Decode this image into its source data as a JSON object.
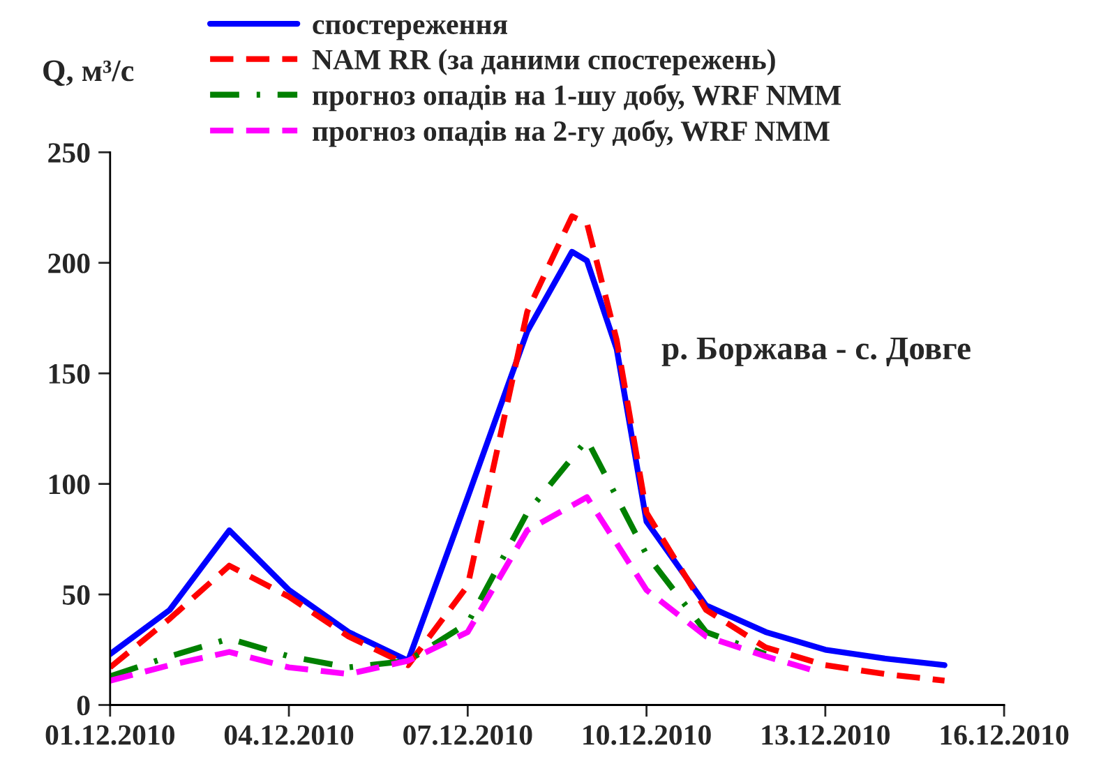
{
  "chart_data": {
    "type": "line",
    "ylabel": "Q, м³/с",
    "xlim": [
      "2010-12-01",
      "2010-12-16"
    ],
    "xticks": [
      {
        "value": "2010-12-01",
        "label": "01.12.2010"
      },
      {
        "value": "2010-12-04",
        "label": "04.12.2010"
      },
      {
        "value": "2010-12-07",
        "label": "07.12.2010"
      },
      {
        "value": "2010-12-10",
        "label": "10.12.2010"
      },
      {
        "value": "2010-12-13",
        "label": "13.12.2010"
      },
      {
        "value": "2010-12-16",
        "label": "16.12.2010"
      }
    ],
    "ylim": [
      0,
      250
    ],
    "yticks": [
      0,
      50,
      100,
      150,
      200,
      250
    ],
    "grid": false,
    "legend": "top",
    "annotations": [
      "р. Боржава - с. Довге"
    ],
    "series": [
      {
        "name": "спостереження",
        "color": "#0000ff",
        "line_style": "solid",
        "x": [
          "2010-12-01",
          "2010-12-02",
          "2010-12-03",
          "2010-12-04",
          "2010-12-05",
          "2010-12-06",
          "2010-12-07",
          "2010-12-08",
          "2010-12-08T18:00",
          "2010-12-09",
          "2010-12-09T12:00",
          "2010-12-10",
          "2010-12-11",
          "2010-12-12",
          "2010-12-13",
          "2010-12-14",
          "2010-12-15"
        ],
        "values": [
          23,
          43,
          79,
          52,
          33,
          20,
          94,
          169,
          205,
          201,
          161,
          83,
          45,
          33,
          25,
          21,
          18
        ]
      },
      {
        "name": "NAM RR (за даними спостережень)",
        "color": "#ff0000",
        "line_style": "dashed",
        "x": [
          "2010-12-01",
          "2010-12-02",
          "2010-12-03",
          "2010-12-04",
          "2010-12-05",
          "2010-12-06",
          "2010-12-07",
          "2010-12-08",
          "2010-12-08T18:00",
          "2010-12-09",
          "2010-12-09T12:00",
          "2010-12-10",
          "2010-12-11",
          "2010-12-12",
          "2010-12-13",
          "2010-12-14",
          "2010-12-15"
        ],
        "values": [
          17,
          39,
          63,
          49,
          31,
          18,
          54,
          178,
          221,
          218,
          165,
          87,
          43,
          26,
          18,
          14,
          11
        ]
      },
      {
        "name": "прогноз опадів на 1-шу добу, WRF NMM",
        "color": "#008000",
        "line_style": "dashdot",
        "x": [
          "2010-12-01",
          "2010-12-02",
          "2010-12-03",
          "2010-12-04",
          "2010-12-05",
          "2010-12-06",
          "2010-12-07",
          "2010-12-08",
          "2010-12-09",
          "2010-12-10",
          "2010-12-11",
          "2010-12-12"
        ],
        "values": [
          13,
          22,
          30,
          22,
          17,
          20,
          37,
          87,
          120,
          68,
          33,
          23
        ]
      },
      {
        "name": "прогноз опадів на 2-гу добу, WRF NMM",
        "color": "#ff00ff",
        "line_style": "dashed",
        "x": [
          "2010-12-01",
          "2010-12-02",
          "2010-12-03",
          "2010-12-04",
          "2010-12-05",
          "2010-12-06",
          "2010-12-07",
          "2010-12-08",
          "2010-12-09",
          "2010-12-10",
          "2010-12-11",
          "2010-12-12",
          "2010-12-12T18:00"
        ],
        "values": [
          11,
          18,
          24,
          17,
          14,
          20,
          33,
          79,
          94,
          52,
          31,
          22,
          16
        ]
      }
    ]
  }
}
